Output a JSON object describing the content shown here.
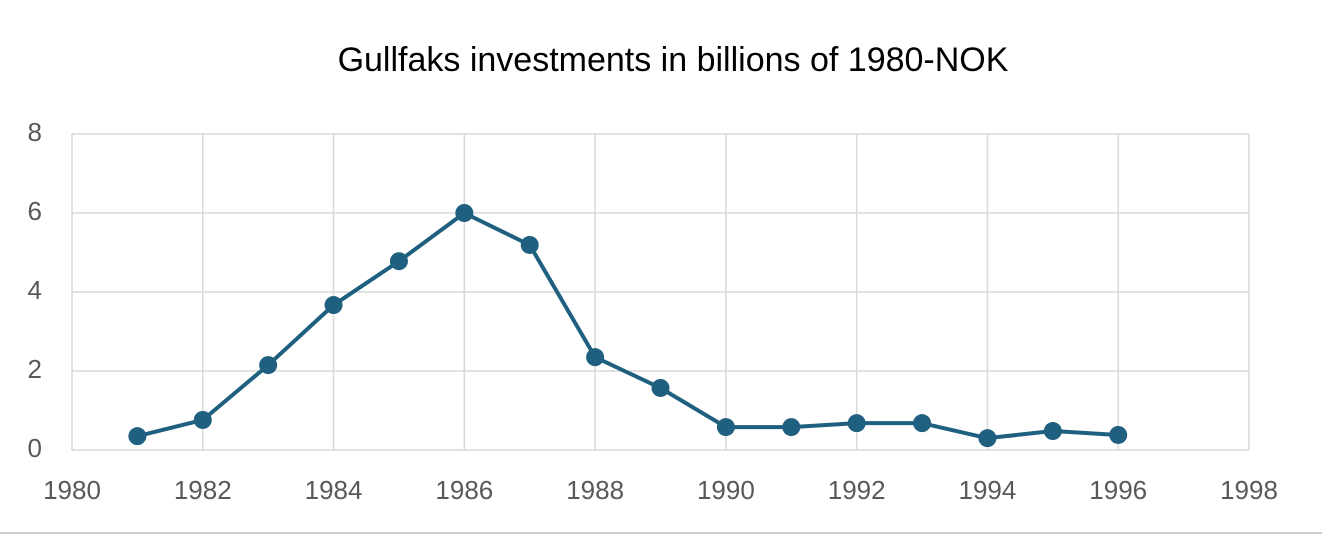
{
  "chart_data": {
    "type": "line",
    "title": "Gullfaks investments in billions of 1980-NOK",
    "x": [
      1981,
      1982,
      1983,
      1984,
      1985,
      1986,
      1987,
      1988,
      1989,
      1990,
      1991,
      1992,
      1993,
      1994,
      1995,
      1996
    ],
    "values": [
      0.35,
      0.76,
      2.15,
      3.67,
      4.78,
      6.0,
      5.19,
      2.35,
      1.57,
      0.58,
      0.58,
      0.68,
      0.68,
      0.3,
      0.48,
      0.38
    ],
    "color": "#1f5f7f",
    "xlim": [
      1980,
      1998
    ],
    "xticks": [
      1980,
      1982,
      1984,
      1986,
      1988,
      1990,
      1992,
      1994,
      1996,
      1998
    ],
    "ylim": [
      0,
      8
    ],
    "yticks": [
      0,
      2,
      4,
      6,
      8
    ],
    "grid": true,
    "markers": true
  }
}
